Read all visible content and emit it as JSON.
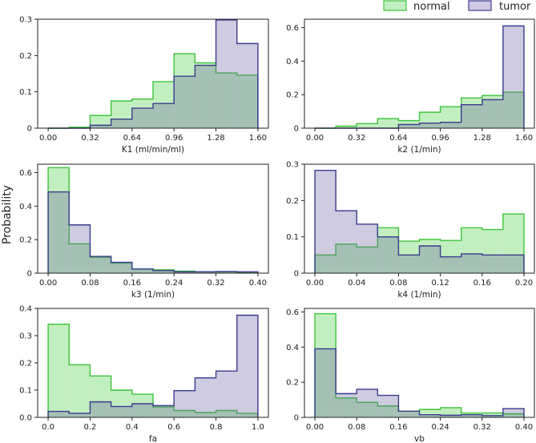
{
  "figure": {
    "ylabel": "Probability",
    "colors": {
      "normal_fill": "#c2efbf",
      "normal_edge": "#3ec43e",
      "tumor_fill": "#6a5d9e",
      "tumor_edge": "#3b3b8f"
    }
  },
  "legend": {
    "items": [
      {
        "name": "normal",
        "fill": "#c2efbf",
        "edge": "#3ec43e"
      },
      {
        "name": "tumor",
        "fill": "#cfc9e6",
        "edge": "#3b3b8f"
      }
    ]
  },
  "chart_data": [
    {
      "type": "histogram",
      "xlabel": "K1 (ml/min/ml)",
      "xlim": [
        -0.08,
        1.68
      ],
      "ylim": [
        0,
        0.3
      ],
      "xticks": [
        "0.00",
        "0.32",
        "0.64",
        "0.96",
        "1.28",
        "1.60"
      ],
      "yticks": [
        "0",
        "0.1",
        "0.2",
        "0.3"
      ],
      "bin_edges": [
        0,
        0.16,
        0.32,
        0.48,
        0.64,
        0.8,
        0.96,
        1.12,
        1.28,
        1.44,
        1.6
      ],
      "series": [
        {
          "name": "normal",
          "values": [
            0,
            0.003,
            0.035,
            0.075,
            0.08,
            0.128,
            0.205,
            0.18,
            0.152,
            0.146
          ]
        },
        {
          "name": "tumor",
          "values": [
            0,
            0,
            0.008,
            0.025,
            0.055,
            0.068,
            0.143,
            0.173,
            0.298,
            0.233
          ]
        }
      ]
    },
    {
      "type": "histogram",
      "xlabel": "k2 (1/min)",
      "xlim": [
        -0.08,
        1.68
      ],
      "ylim": [
        0,
        0.65
      ],
      "xticks": [
        "0.00",
        "0.32",
        "0.64",
        "0.96",
        "1.28",
        "1.60"
      ],
      "yticks": [
        "0",
        "0.2",
        "0.4",
        "0.6"
      ],
      "bin_edges": [
        0,
        0.16,
        0.32,
        0.48,
        0.64,
        0.8,
        0.96,
        1.12,
        1.28,
        1.44,
        1.6
      ],
      "series": [
        {
          "name": "normal",
          "values": [
            0,
            0.012,
            0.027,
            0.057,
            0.045,
            0.095,
            0.128,
            0.18,
            0.195,
            0.215
          ]
        },
        {
          "name": "tumor",
          "values": [
            0,
            0,
            0,
            0,
            0.022,
            0.03,
            0.035,
            0.14,
            0.17,
            0.61
          ]
        }
      ]
    },
    {
      "type": "histogram",
      "xlabel": "k3 (1/min)",
      "xlim": [
        -0.02,
        0.42
      ],
      "ylim": [
        0,
        0.65
      ],
      "xticks": [
        "0.00",
        "0.08",
        "0.16",
        "0.24",
        "0.32",
        "0.40"
      ],
      "yticks": [
        "0",
        "0.2",
        "0.4",
        "0.6"
      ],
      "bin_edges": [
        0,
        0.04,
        0.08,
        0.12,
        0.16,
        0.2,
        0.24,
        0.28,
        0.32,
        0.36,
        0.4
      ],
      "series": [
        {
          "name": "normal",
          "values": [
            0.63,
            0.175,
            0.095,
            0.06,
            0.025,
            0.02,
            0.012,
            0.008,
            0.008,
            0.005
          ]
        },
        {
          "name": "tumor",
          "values": [
            0.485,
            0.288,
            0.1,
            0.065,
            0.025,
            0.015,
            0.008,
            0.008,
            0.01,
            0.008
          ]
        }
      ]
    },
    {
      "type": "histogram",
      "xlabel": "k4 (1/min)",
      "xlim": [
        -0.01,
        0.21
      ],
      "ylim": [
        0,
        0.3
      ],
      "xticks": [
        "0.00",
        "0.04",
        "0.08",
        "0.12",
        "0.16",
        "0.20"
      ],
      "yticks": [
        "0",
        "0.1",
        "0.2",
        "0.3"
      ],
      "bin_edges": [
        0,
        0.02,
        0.04,
        0.06,
        0.08,
        0.1,
        0.12,
        0.14,
        0.16,
        0.18,
        0.2
      ],
      "series": [
        {
          "name": "normal",
          "values": [
            0.05,
            0.08,
            0.072,
            0.125,
            0.088,
            0.093,
            0.09,
            0.125,
            0.12,
            0.163
          ]
        },
        {
          "name": "tumor",
          "values": [
            0.283,
            0.172,
            0.135,
            0.1,
            0.05,
            0.075,
            0.045,
            0.053,
            0.05,
            0.05
          ]
        }
      ]
    },
    {
      "type": "histogram",
      "xlabel": "fa",
      "xlim": [
        -0.05,
        1.05
      ],
      "ylim": [
        0,
        0.4
      ],
      "xticks": [
        "0.0",
        "0.2",
        "0.4",
        "0.6",
        "0.8",
        "1.0"
      ],
      "yticks": [
        "0.0",
        "0.1",
        "0.2",
        "0.3",
        "0.4"
      ],
      "bin_edges": [
        0,
        0.1,
        0.2,
        0.3,
        0.4,
        0.5,
        0.6,
        0.7,
        0.8,
        0.9,
        1.0
      ],
      "series": [
        {
          "name": "normal",
          "values": [
            0.342,
            0.193,
            0.152,
            0.1,
            0.085,
            0.038,
            0.025,
            0.018,
            0.025,
            0.015
          ]
        },
        {
          "name": "tumor",
          "values": [
            0.022,
            0.015,
            0.057,
            0.04,
            0.05,
            0.043,
            0.098,
            0.145,
            0.17,
            0.375
          ]
        }
      ]
    },
    {
      "type": "histogram",
      "xlabel": "vb",
      "xlim": [
        -0.02,
        0.42
      ],
      "ylim": [
        0,
        0.62
      ],
      "xticks": [
        "0.00",
        "0.08",
        "0.16",
        "0.24",
        "0.32",
        "0.40"
      ],
      "yticks": [
        "0",
        "0.2",
        "0.4",
        "0.6"
      ],
      "bin_edges": [
        0,
        0.04,
        0.08,
        0.12,
        0.16,
        0.2,
        0.24,
        0.28,
        0.32,
        0.36,
        0.4
      ],
      "series": [
        {
          "name": "normal",
          "values": [
            0.59,
            0.11,
            0.085,
            0.065,
            0.035,
            0.045,
            0.055,
            0.025,
            0.025,
            0.02
          ]
        },
        {
          "name": "tumor",
          "values": [
            0.39,
            0.135,
            0.16,
            0.125,
            0.035,
            0.015,
            0.012,
            0.015,
            0.01,
            0.05
          ]
        }
      ]
    }
  ]
}
